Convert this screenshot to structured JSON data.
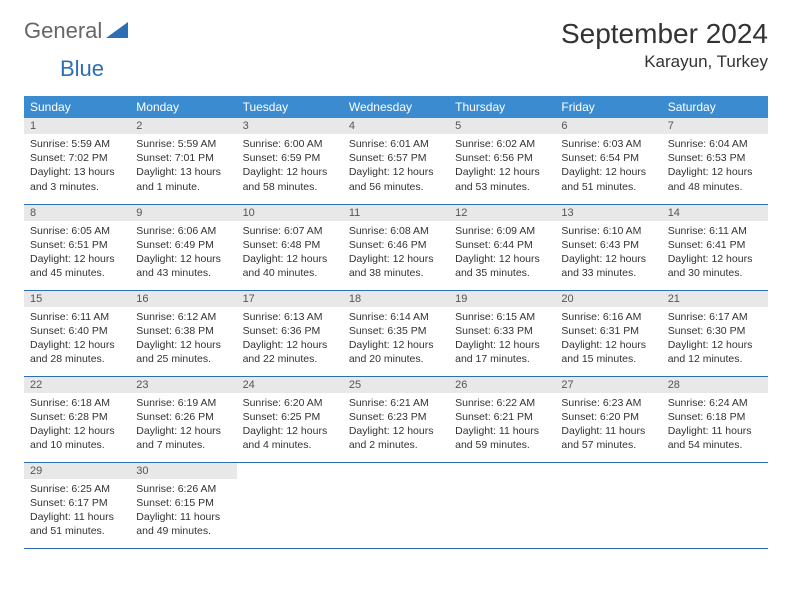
{
  "logo": {
    "text1": "General",
    "text2": "Blue"
  },
  "title": "September 2024",
  "location": "Karayun, Turkey",
  "colors": {
    "header_bg": "#3b8bd0",
    "header_text": "#ffffff",
    "daynum_bg": "#e8e8e8",
    "border": "#2d6fb5",
    "logo_gray": "#666666",
    "logo_blue": "#2d6fb5"
  },
  "weekdays": [
    "Sunday",
    "Monday",
    "Tuesday",
    "Wednesday",
    "Thursday",
    "Friday",
    "Saturday"
  ],
  "days": [
    {
      "n": "1",
      "sr": "Sunrise: 5:59 AM",
      "ss": "Sunset: 7:02 PM",
      "dl": "Daylight: 13 hours and 3 minutes."
    },
    {
      "n": "2",
      "sr": "Sunrise: 5:59 AM",
      "ss": "Sunset: 7:01 PM",
      "dl": "Daylight: 13 hours and 1 minute."
    },
    {
      "n": "3",
      "sr": "Sunrise: 6:00 AM",
      "ss": "Sunset: 6:59 PM",
      "dl": "Daylight: 12 hours and 58 minutes."
    },
    {
      "n": "4",
      "sr": "Sunrise: 6:01 AM",
      "ss": "Sunset: 6:57 PM",
      "dl": "Daylight: 12 hours and 56 minutes."
    },
    {
      "n": "5",
      "sr": "Sunrise: 6:02 AM",
      "ss": "Sunset: 6:56 PM",
      "dl": "Daylight: 12 hours and 53 minutes."
    },
    {
      "n": "6",
      "sr": "Sunrise: 6:03 AM",
      "ss": "Sunset: 6:54 PM",
      "dl": "Daylight: 12 hours and 51 minutes."
    },
    {
      "n": "7",
      "sr": "Sunrise: 6:04 AM",
      "ss": "Sunset: 6:53 PM",
      "dl": "Daylight: 12 hours and 48 minutes."
    },
    {
      "n": "8",
      "sr": "Sunrise: 6:05 AM",
      "ss": "Sunset: 6:51 PM",
      "dl": "Daylight: 12 hours and 45 minutes."
    },
    {
      "n": "9",
      "sr": "Sunrise: 6:06 AM",
      "ss": "Sunset: 6:49 PM",
      "dl": "Daylight: 12 hours and 43 minutes."
    },
    {
      "n": "10",
      "sr": "Sunrise: 6:07 AM",
      "ss": "Sunset: 6:48 PM",
      "dl": "Daylight: 12 hours and 40 minutes."
    },
    {
      "n": "11",
      "sr": "Sunrise: 6:08 AM",
      "ss": "Sunset: 6:46 PM",
      "dl": "Daylight: 12 hours and 38 minutes."
    },
    {
      "n": "12",
      "sr": "Sunrise: 6:09 AM",
      "ss": "Sunset: 6:44 PM",
      "dl": "Daylight: 12 hours and 35 minutes."
    },
    {
      "n": "13",
      "sr": "Sunrise: 6:10 AM",
      "ss": "Sunset: 6:43 PM",
      "dl": "Daylight: 12 hours and 33 minutes."
    },
    {
      "n": "14",
      "sr": "Sunrise: 6:11 AM",
      "ss": "Sunset: 6:41 PM",
      "dl": "Daylight: 12 hours and 30 minutes."
    },
    {
      "n": "15",
      "sr": "Sunrise: 6:11 AM",
      "ss": "Sunset: 6:40 PM",
      "dl": "Daylight: 12 hours and 28 minutes."
    },
    {
      "n": "16",
      "sr": "Sunrise: 6:12 AM",
      "ss": "Sunset: 6:38 PM",
      "dl": "Daylight: 12 hours and 25 minutes."
    },
    {
      "n": "17",
      "sr": "Sunrise: 6:13 AM",
      "ss": "Sunset: 6:36 PM",
      "dl": "Daylight: 12 hours and 22 minutes."
    },
    {
      "n": "18",
      "sr": "Sunrise: 6:14 AM",
      "ss": "Sunset: 6:35 PM",
      "dl": "Daylight: 12 hours and 20 minutes."
    },
    {
      "n": "19",
      "sr": "Sunrise: 6:15 AM",
      "ss": "Sunset: 6:33 PM",
      "dl": "Daylight: 12 hours and 17 minutes."
    },
    {
      "n": "20",
      "sr": "Sunrise: 6:16 AM",
      "ss": "Sunset: 6:31 PM",
      "dl": "Daylight: 12 hours and 15 minutes."
    },
    {
      "n": "21",
      "sr": "Sunrise: 6:17 AM",
      "ss": "Sunset: 6:30 PM",
      "dl": "Daylight: 12 hours and 12 minutes."
    },
    {
      "n": "22",
      "sr": "Sunrise: 6:18 AM",
      "ss": "Sunset: 6:28 PM",
      "dl": "Daylight: 12 hours and 10 minutes."
    },
    {
      "n": "23",
      "sr": "Sunrise: 6:19 AM",
      "ss": "Sunset: 6:26 PM",
      "dl": "Daylight: 12 hours and 7 minutes."
    },
    {
      "n": "24",
      "sr": "Sunrise: 6:20 AM",
      "ss": "Sunset: 6:25 PM",
      "dl": "Daylight: 12 hours and 4 minutes."
    },
    {
      "n": "25",
      "sr": "Sunrise: 6:21 AM",
      "ss": "Sunset: 6:23 PM",
      "dl": "Daylight: 12 hours and 2 minutes."
    },
    {
      "n": "26",
      "sr": "Sunrise: 6:22 AM",
      "ss": "Sunset: 6:21 PM",
      "dl": "Daylight: 11 hours and 59 minutes."
    },
    {
      "n": "27",
      "sr": "Sunrise: 6:23 AM",
      "ss": "Sunset: 6:20 PM",
      "dl": "Daylight: 11 hours and 57 minutes."
    },
    {
      "n": "28",
      "sr": "Sunrise: 6:24 AM",
      "ss": "Sunset: 6:18 PM",
      "dl": "Daylight: 11 hours and 54 minutes."
    },
    {
      "n": "29",
      "sr": "Sunrise: 6:25 AM",
      "ss": "Sunset: 6:17 PM",
      "dl": "Daylight: 11 hours and 51 minutes."
    },
    {
      "n": "30",
      "sr": "Sunrise: 6:26 AM",
      "ss": "Sunset: 6:15 PM",
      "dl": "Daylight: 11 hours and 49 minutes."
    }
  ]
}
